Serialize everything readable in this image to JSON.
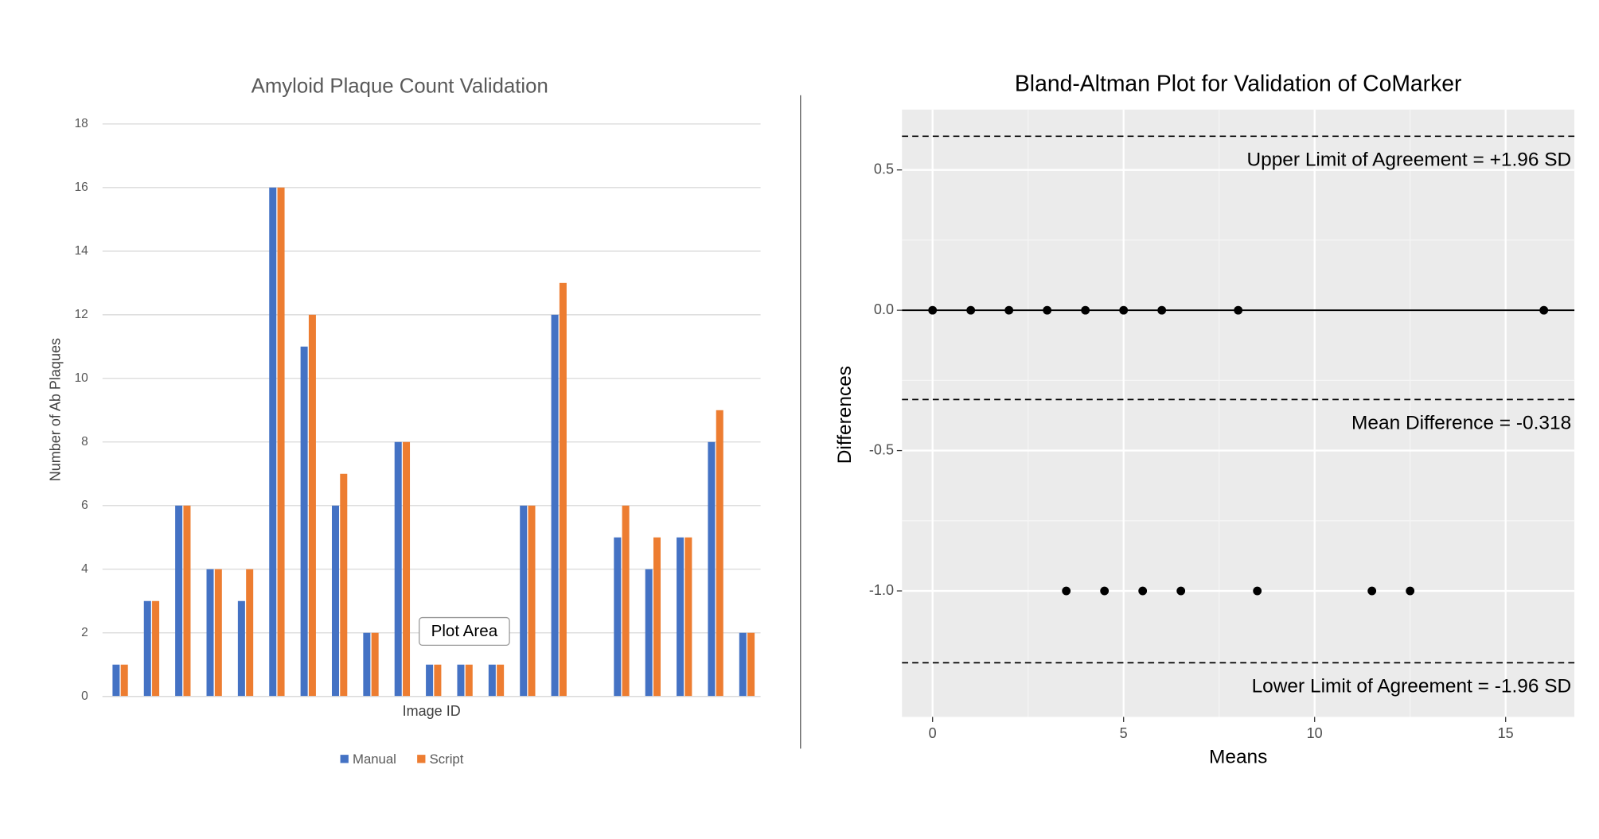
{
  "chart_data": [
    {
      "type": "bar",
      "title": "Amyloid Plaque Count Validation",
      "x_label": "Image ID",
      "y_label": "Number of Ab Plaques",
      "categories": [
        null,
        null,
        null,
        null,
        null,
        null,
        null,
        null,
        null,
        null,
        null,
        null,
        null,
        null,
        null,
        null,
        null,
        null,
        null,
        null,
        null
      ],
      "series": [
        {
          "name": "Manual",
          "color": "#4472c4",
          "values": [
            1,
            3,
            6,
            4,
            3,
            16,
            11,
            6,
            2,
            8,
            1,
            1,
            1,
            6,
            12,
            0,
            5,
            4,
            5,
            8,
            2
          ]
        },
        {
          "name": "Script",
          "color": "#ed7d31",
          "values": [
            1,
            3,
            6,
            4,
            4,
            16,
            12,
            7,
            2,
            8,
            1,
            1,
            1,
            6,
            13,
            0,
            6,
            5,
            5,
            9,
            2
          ]
        }
      ],
      "ylim": [
        0,
        18
      ],
      "yticks": [
        0,
        2,
        4,
        6,
        8,
        10,
        12,
        14,
        16,
        18
      ],
      "grid": true,
      "legend": "bottom",
      "tooltip": "Plot Area"
    },
    {
      "type": "scatter",
      "title": "Bland-Altman Plot for Validation of CoMarker",
      "x_label": "Means",
      "y_label": "Differences",
      "x": [
        0,
        1,
        2,
        3,
        4,
        5,
        6,
        8,
        16,
        3.5,
        4.5,
        5.5,
        6.5,
        8.5,
        11.5,
        12.5
      ],
      "values": [
        0,
        0,
        0,
        0,
        0,
        0,
        0,
        0,
        0,
        -1,
        -1,
        -1,
        -1,
        -1,
        -1,
        -1
      ],
      "color": "#000000",
      "xlim": [
        -0.8,
        16.8
      ],
      "ylim": [
        -1.449,
        0.715
      ],
      "xticks": [
        0,
        5,
        10,
        15
      ],
      "yticks": [
        {
          "value": 0.5,
          "label": "0.5"
        },
        {
          "value": 0,
          "label": "0.0"
        },
        {
          "value": -0.5,
          "label": "-0.5"
        },
        {
          "value": -1,
          "label": "-1.0"
        }
      ],
      "grid": true,
      "hlines": [
        {
          "value": 0,
          "style": "solid"
        },
        {
          "value": 0.62,
          "style": "dashed",
          "label": "Upper Limit of Agreement = +1.96 SD"
        },
        {
          "value": -0.318,
          "style": "dashed",
          "label": "Mean Difference = -0.318"
        },
        {
          "value": -1.256,
          "style": "dashed",
          "label": "Lower Limit of Agreement = -1.96 SD"
        }
      ]
    }
  ]
}
